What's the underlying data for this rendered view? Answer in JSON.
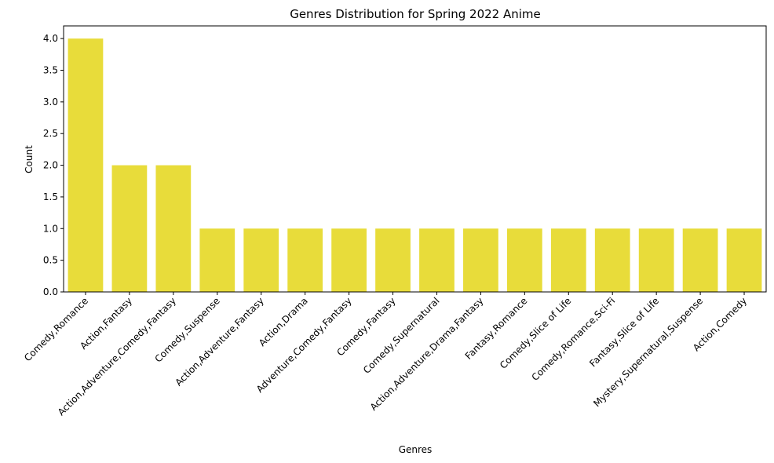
{
  "chart_data": {
    "type": "bar",
    "title": "Genres Distribution for Spring 2022 Anime",
    "xlabel": "Genres",
    "ylabel": "Count",
    "ylim": [
      0,
      4.2
    ],
    "yticks": [
      "0.0",
      "0.5",
      "1.0",
      "1.5",
      "2.0",
      "2.5",
      "3.0",
      "3.5",
      "4.0"
    ],
    "bar_color": "#e8dc3a",
    "grid": false,
    "categories": [
      "Comedy,Romance",
      "Action,Fantasy",
      "Action,Adventure,Comedy,Fantasy",
      "Comedy,Suspense",
      "Action,Adventure,Fantasy",
      "Action,Drama",
      "Adventure,Comedy,Fantasy",
      "Comedy,Fantasy",
      "Comedy,Supernatural",
      "Action,Adventure,Drama,Fantasy",
      "Fantasy,Romance",
      "Comedy,Slice of Life",
      "Comedy,Romance,Sci-Fi",
      "Fantasy,Slice of Life",
      "Mystery,Supernatural,Suspense",
      "Action,Comedy"
    ],
    "values": [
      4,
      2,
      2,
      1,
      1,
      1,
      1,
      1,
      1,
      1,
      1,
      1,
      1,
      1,
      1,
      1
    ]
  }
}
